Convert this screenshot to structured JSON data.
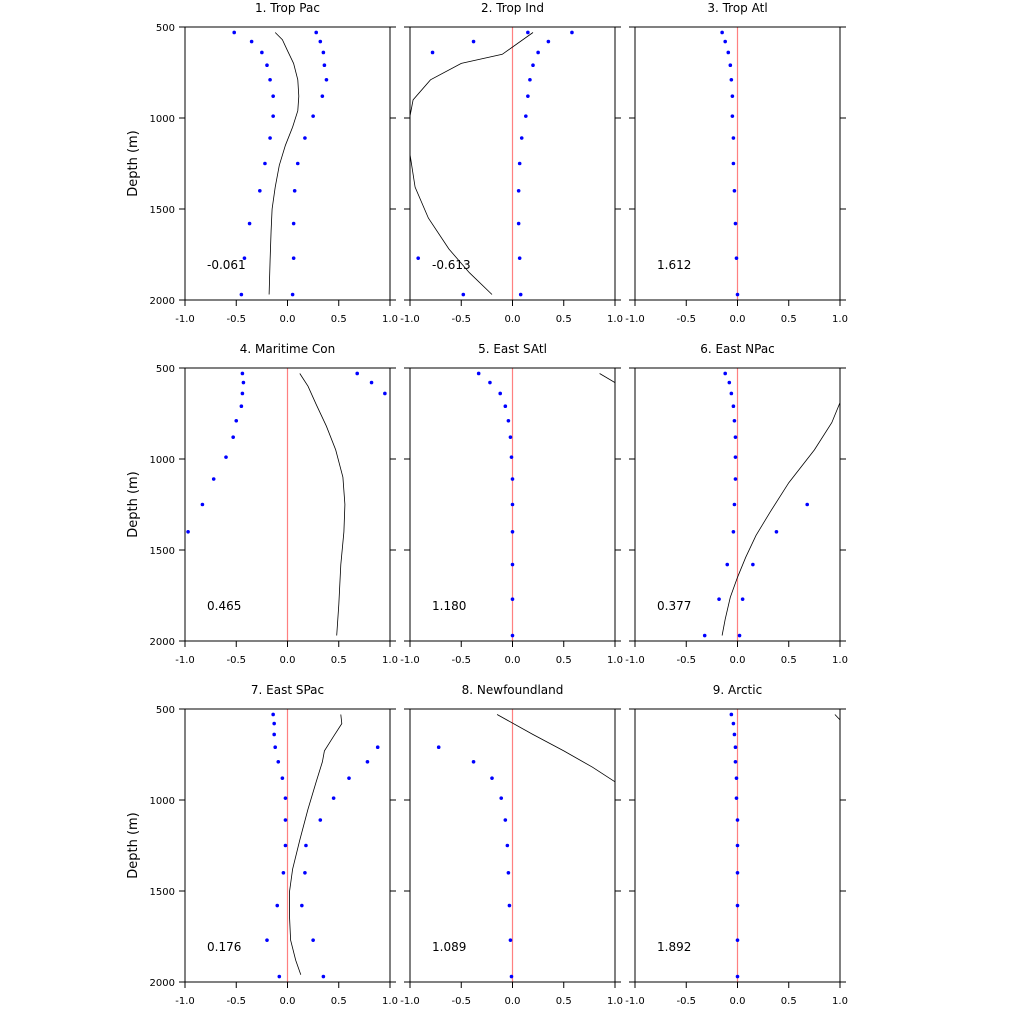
{
  "colors": {
    "zero_line": "#ff8080",
    "points": "#0000ff",
    "curve": "#000000",
    "frame": "#000000"
  },
  "ylabel": "Depth (m)",
  "chart_data": [
    {
      "type": "scatter",
      "title": "1. Trop Pac",
      "correlation": "-0.061",
      "xlim": [
        -1.0,
        1.0
      ],
      "ylim": [
        2000,
        500
      ],
      "xticks": [
        "-1.0",
        "-0.5",
        "0.0",
        "0.5",
        "1.0"
      ],
      "yticks": [
        "500",
        "1000",
        "1500",
        "2000"
      ],
      "zero_line": false,
      "points": [
        [
          -0.52,
          530
        ],
        [
          -0.35,
          580
        ],
        [
          -0.25,
          640
        ],
        [
          -0.2,
          710
        ],
        [
          -0.17,
          790
        ],
        [
          -0.14,
          880
        ],
        [
          -0.14,
          990
        ],
        [
          -0.17,
          1110
        ],
        [
          -0.22,
          1250
        ],
        [
          -0.27,
          1400
        ],
        [
          -0.37,
          1580
        ],
        [
          -0.42,
          1770
        ],
        [
          -0.45,
          1970
        ],
        [
          0.28,
          530
        ],
        [
          0.32,
          580
        ],
        [
          0.35,
          640
        ],
        [
          0.36,
          710
        ],
        [
          0.38,
          790
        ],
        [
          0.34,
          880
        ],
        [
          0.25,
          990
        ],
        [
          0.17,
          1110
        ],
        [
          0.1,
          1250
        ],
        [
          0.07,
          1400
        ],
        [
          0.06,
          1580
        ],
        [
          0.06,
          1770
        ],
        [
          0.05,
          1970
        ]
      ],
      "curve": [
        [
          -0.12,
          530
        ],
        [
          -0.05,
          570
        ],
        [
          0.0,
          630
        ],
        [
          0.06,
          700
        ],
        [
          0.1,
          790
        ],
        [
          0.11,
          880
        ],
        [
          0.1,
          960
        ],
        [
          0.05,
          1050
        ],
        [
          -0.02,
          1150
        ],
        [
          -0.08,
          1260
        ],
        [
          -0.12,
          1380
        ],
        [
          -0.15,
          1500
        ],
        [
          -0.16,
          1620
        ],
        [
          -0.17,
          1780
        ],
        [
          -0.18,
          1970
        ]
      ]
    },
    {
      "type": "scatter",
      "title": "2. Trop Ind",
      "correlation": "-0.613",
      "xlim": [
        -1.0,
        1.0
      ],
      "ylim": [
        2000,
        500
      ],
      "xticks": [
        "-1.0",
        "-0.5",
        "0.0",
        "0.5",
        "1.0"
      ],
      "yticks": [
        "500",
        "1000",
        "1500",
        "2000"
      ],
      "zero_line": true,
      "points": [
        [
          0.58,
          530
        ],
        [
          0.35,
          580
        ],
        [
          0.25,
          640
        ],
        [
          0.2,
          710
        ],
        [
          0.17,
          790
        ],
        [
          0.15,
          880
        ],
        [
          0.13,
          990
        ],
        [
          0.09,
          1110
        ],
        [
          0.07,
          1250
        ],
        [
          0.06,
          1400
        ],
        [
          0.06,
          1580
        ],
        [
          0.07,
          1770
        ],
        [
          0.08,
          1970
        ],
        [
          0.15,
          530
        ],
        [
          -0.38,
          580
        ],
        [
          -0.78,
          640
        ],
        [
          -0.92,
          1770
        ],
        [
          -0.48,
          1970
        ]
      ],
      "curve": [
        [
          0.2,
          530
        ],
        [
          -0.1,
          650
        ],
        [
          -0.5,
          700
        ],
        [
          -0.8,
          790
        ],
        [
          -0.97,
          900
        ],
        [
          -1.02,
          1050
        ],
        [
          -1.0,
          1200
        ],
        [
          -0.95,
          1380
        ],
        [
          -0.82,
          1550
        ],
        [
          -0.62,
          1720
        ],
        [
          -0.42,
          1850
        ],
        [
          -0.2,
          1970
        ]
      ]
    },
    {
      "type": "scatter",
      "title": "3. Trop Atl",
      "correlation": "1.612",
      "xlim": [
        -1.0,
        1.0
      ],
      "ylim": [
        2000,
        500
      ],
      "xticks": [
        "-1.0",
        "-0.5",
        "0.0",
        "0.5",
        "1.0"
      ],
      "yticks": [
        "500",
        "1000",
        "1500",
        "2000"
      ],
      "zero_line": true,
      "points": [
        [
          -0.15,
          530
        ],
        [
          -0.12,
          580
        ],
        [
          -0.09,
          640
        ],
        [
          -0.07,
          710
        ],
        [
          -0.06,
          790
        ],
        [
          -0.05,
          880
        ],
        [
          -0.05,
          990
        ],
        [
          -0.04,
          1110
        ],
        [
          -0.04,
          1250
        ],
        [
          -0.03,
          1400
        ],
        [
          -0.02,
          1580
        ],
        [
          -0.01,
          1770
        ],
        [
          0.0,
          1970
        ]
      ],
      "curve": []
    },
    {
      "type": "scatter",
      "title": "4. Maritime Con",
      "correlation": "0.465",
      "xlim": [
        -1.0,
        1.0
      ],
      "ylim": [
        2000,
        500
      ],
      "xticks": [
        "-1.0",
        "-0.5",
        "0.0",
        "0.5",
        "1.0"
      ],
      "yticks": [
        "500",
        "1000",
        "1500",
        "2000"
      ],
      "zero_line": true,
      "points": [
        [
          -0.44,
          530
        ],
        [
          -0.43,
          580
        ],
        [
          -0.44,
          640
        ],
        [
          -0.45,
          710
        ],
        [
          -0.5,
          790
        ],
        [
          -0.53,
          880
        ],
        [
          -0.6,
          990
        ],
        [
          -0.72,
          1110
        ],
        [
          -0.83,
          1250
        ],
        [
          -0.97,
          1400
        ],
        [
          0.68,
          530
        ],
        [
          0.82,
          580
        ],
        [
          0.95,
          640
        ]
      ],
      "curve": [
        [
          0.12,
          530
        ],
        [
          0.2,
          600
        ],
        [
          0.28,
          700
        ],
        [
          0.38,
          820
        ],
        [
          0.47,
          950
        ],
        [
          0.54,
          1100
        ],
        [
          0.56,
          1250
        ],
        [
          0.55,
          1400
        ],
        [
          0.52,
          1580
        ],
        [
          0.5,
          1800
        ],
        [
          0.48,
          1970
        ]
      ]
    },
    {
      "type": "scatter",
      "title": "5. East SAtl",
      "correlation": "1.180",
      "xlim": [
        -1.0,
        1.0
      ],
      "ylim": [
        2000,
        500
      ],
      "xticks": [
        "-1.0",
        "-0.5",
        "0.0",
        "0.5",
        "1.0"
      ],
      "yticks": [
        "500",
        "1000",
        "1500",
        "2000"
      ],
      "zero_line": true,
      "points": [
        [
          -0.33,
          530
        ],
        [
          -0.22,
          580
        ],
        [
          -0.12,
          640
        ],
        [
          -0.07,
          710
        ],
        [
          -0.04,
          790
        ],
        [
          -0.02,
          880
        ],
        [
          -0.01,
          990
        ],
        [
          0.0,
          1110
        ],
        [
          0.0,
          1250
        ],
        [
          0.0,
          1400
        ],
        [
          0.0,
          1580
        ],
        [
          0.0,
          1770
        ],
        [
          0.0,
          1970
        ]
      ],
      "curve": [
        [
          0.85,
          530
        ],
        [
          1.0,
          580
        ]
      ]
    },
    {
      "type": "scatter",
      "title": "6. East NPac",
      "correlation": "0.377",
      "xlim": [
        -1.0,
        1.0
      ],
      "ylim": [
        2000,
        500
      ],
      "xticks": [
        "-1.0",
        "-0.5",
        "0.0",
        "0.5",
        "1.0"
      ],
      "yticks": [
        "500",
        "1000",
        "1500",
        "2000"
      ],
      "zero_line": true,
      "points": [
        [
          -0.12,
          530
        ],
        [
          -0.08,
          580
        ],
        [
          -0.06,
          640
        ],
        [
          -0.04,
          710
        ],
        [
          -0.03,
          790
        ],
        [
          -0.02,
          880
        ],
        [
          -0.02,
          990
        ],
        [
          -0.02,
          1110
        ],
        [
          -0.03,
          1250
        ],
        [
          -0.04,
          1400
        ],
        [
          -0.1,
          1580
        ],
        [
          -0.18,
          1770
        ],
        [
          -0.32,
          1970
        ],
        [
          0.68,
          1250
        ],
        [
          0.38,
          1400
        ],
        [
          0.15,
          1580
        ],
        [
          0.05,
          1770
        ],
        [
          0.02,
          1970
        ]
      ],
      "curve": [
        [
          1.0,
          690
        ],
        [
          0.92,
          800
        ],
        [
          0.75,
          950
        ],
        [
          0.5,
          1130
        ],
        [
          0.32,
          1290
        ],
        [
          0.18,
          1420
        ],
        [
          0.08,
          1540
        ],
        [
          0.0,
          1650
        ],
        [
          -0.07,
          1760
        ],
        [
          -0.12,
          1880
        ],
        [
          -0.15,
          1970
        ]
      ]
    },
    {
      "type": "scatter",
      "title": "7. East SPac",
      "correlation": "0.176",
      "xlim": [
        -1.0,
        1.0
      ],
      "ylim": [
        2000,
        500
      ],
      "xticks": [
        "-1.0",
        "-0.5",
        "0.0",
        "0.5",
        "1.0"
      ],
      "yticks": [
        "500",
        "1000",
        "1500",
        "2000"
      ],
      "zero_line": true,
      "points": [
        [
          -0.14,
          530
        ],
        [
          -0.13,
          580
        ],
        [
          -0.13,
          640
        ],
        [
          -0.12,
          710
        ],
        [
          -0.09,
          790
        ],
        [
          -0.05,
          880
        ],
        [
          -0.02,
          990
        ],
        [
          -0.02,
          1110
        ],
        [
          -0.02,
          1250
        ],
        [
          -0.04,
          1400
        ],
        [
          -0.1,
          1580
        ],
        [
          -0.2,
          1770
        ],
        [
          -0.08,
          1970
        ],
        [
          0.88,
          710
        ],
        [
          0.78,
          790
        ],
        [
          0.6,
          880
        ],
        [
          0.45,
          990
        ],
        [
          0.32,
          1110
        ],
        [
          0.18,
          1250
        ],
        [
          0.17,
          1400
        ],
        [
          0.14,
          1580
        ],
        [
          0.25,
          1770
        ],
        [
          0.35,
          1970
        ]
      ],
      "curve": [
        [
          0.52,
          530
        ],
        [
          0.53,
          580
        ],
        [
          0.45,
          650
        ],
        [
          0.36,
          730
        ],
        [
          0.34,
          790
        ],
        [
          0.28,
          900
        ],
        [
          0.2,
          1050
        ],
        [
          0.12,
          1220
        ],
        [
          0.05,
          1380
        ],
        [
          0.02,
          1500
        ],
        [
          0.02,
          1650
        ],
        [
          0.03,
          1770
        ],
        [
          0.08,
          1880
        ],
        [
          0.13,
          1960
        ]
      ]
    },
    {
      "type": "scatter",
      "title": "8. Newfoundland",
      "correlation": "1.089",
      "xlim": [
        -1.0,
        1.0
      ],
      "ylim": [
        2000,
        500
      ],
      "xticks": [
        "-1.0",
        "-0.5",
        "0.0",
        "0.5",
        "1.0"
      ],
      "yticks": [
        "500",
        "1000",
        "1500",
        "2000"
      ],
      "zero_line": true,
      "points": [
        [
          -0.72,
          710
        ],
        [
          -0.38,
          790
        ],
        [
          -0.2,
          880
        ],
        [
          -0.11,
          990
        ],
        [
          -0.07,
          1110
        ],
        [
          -0.05,
          1250
        ],
        [
          -0.04,
          1400
        ],
        [
          -0.03,
          1580
        ],
        [
          -0.02,
          1770
        ],
        [
          -0.01,
          1970
        ]
      ],
      "curve": [
        [
          -0.15,
          530
        ],
        [
          0.2,
          640
        ],
        [
          0.5,
          730
        ],
        [
          0.78,
          820
        ],
        [
          1.0,
          900
        ]
      ]
    },
    {
      "type": "scatter",
      "title": "9. Arctic",
      "correlation": "1.892",
      "xlim": [
        -1.0,
        1.0
      ],
      "ylim": [
        2000,
        500
      ],
      "xticks": [
        "-1.0",
        "-0.5",
        "0.0",
        "0.5",
        "1.0"
      ],
      "yticks": [
        "500",
        "1000",
        "1500",
        "2000"
      ],
      "zero_line": true,
      "points": [
        [
          -0.06,
          530
        ],
        [
          -0.04,
          580
        ],
        [
          -0.03,
          640
        ],
        [
          -0.02,
          710
        ],
        [
          -0.02,
          790
        ],
        [
          -0.01,
          880
        ],
        [
          -0.01,
          990
        ],
        [
          0.0,
          1110
        ],
        [
          0.0,
          1250
        ],
        [
          0.0,
          1400
        ],
        [
          0.0,
          1580
        ],
        [
          0.0,
          1770
        ],
        [
          0.0,
          1970
        ]
      ],
      "curve": [
        [
          0.95,
          530
        ],
        [
          1.0,
          560
        ]
      ]
    }
  ]
}
